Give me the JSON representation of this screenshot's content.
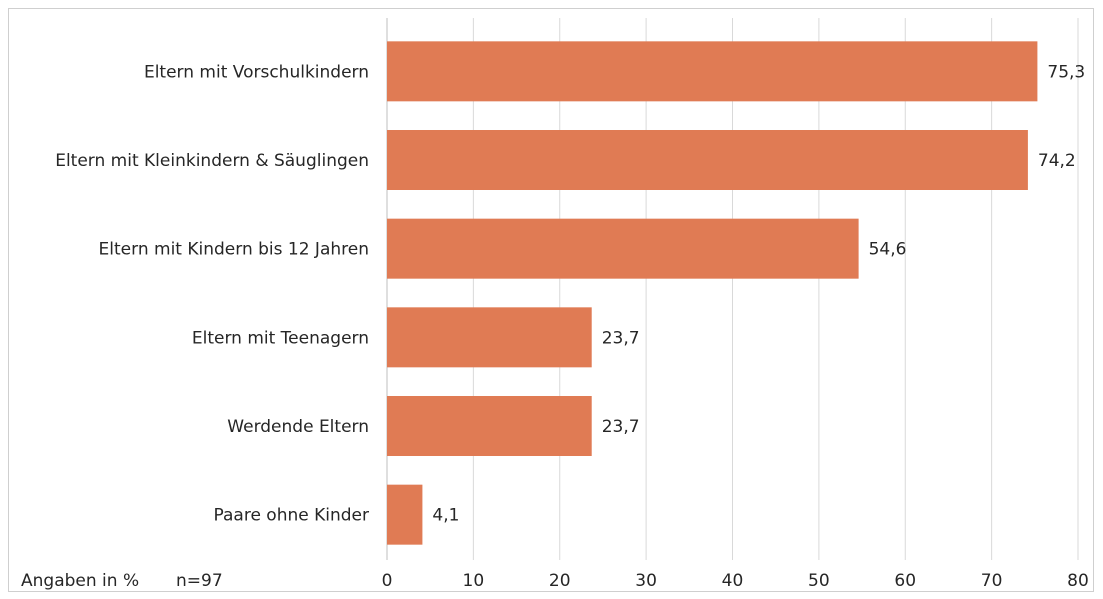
{
  "chart_data": {
    "type": "bar",
    "orientation": "horizontal",
    "categories": [
      "Eltern mit Vorschulkindern",
      "Eltern mit Kleinkindern & Säuglingen",
      "Eltern mit Kindern bis 12 Jahren",
      "Eltern mit Teenagern",
      "Werdende Eltern",
      "Paare ohne Kinder"
    ],
    "values": [
      75.3,
      74.2,
      54.6,
      23.7,
      23.7,
      4.1
    ],
    "value_labels": [
      "75,3",
      "74,2",
      "54,6",
      "23,7",
      "23,7",
      "4,1"
    ],
    "xlim": [
      0,
      80
    ],
    "xticks": [
      0,
      10,
      20,
      30,
      40,
      50,
      60,
      70,
      80
    ],
    "grid": "vertical",
    "bar_color": "#e07b54",
    "footnote": {
      "unit": "Angaben in %",
      "sample": "n=97"
    }
  }
}
